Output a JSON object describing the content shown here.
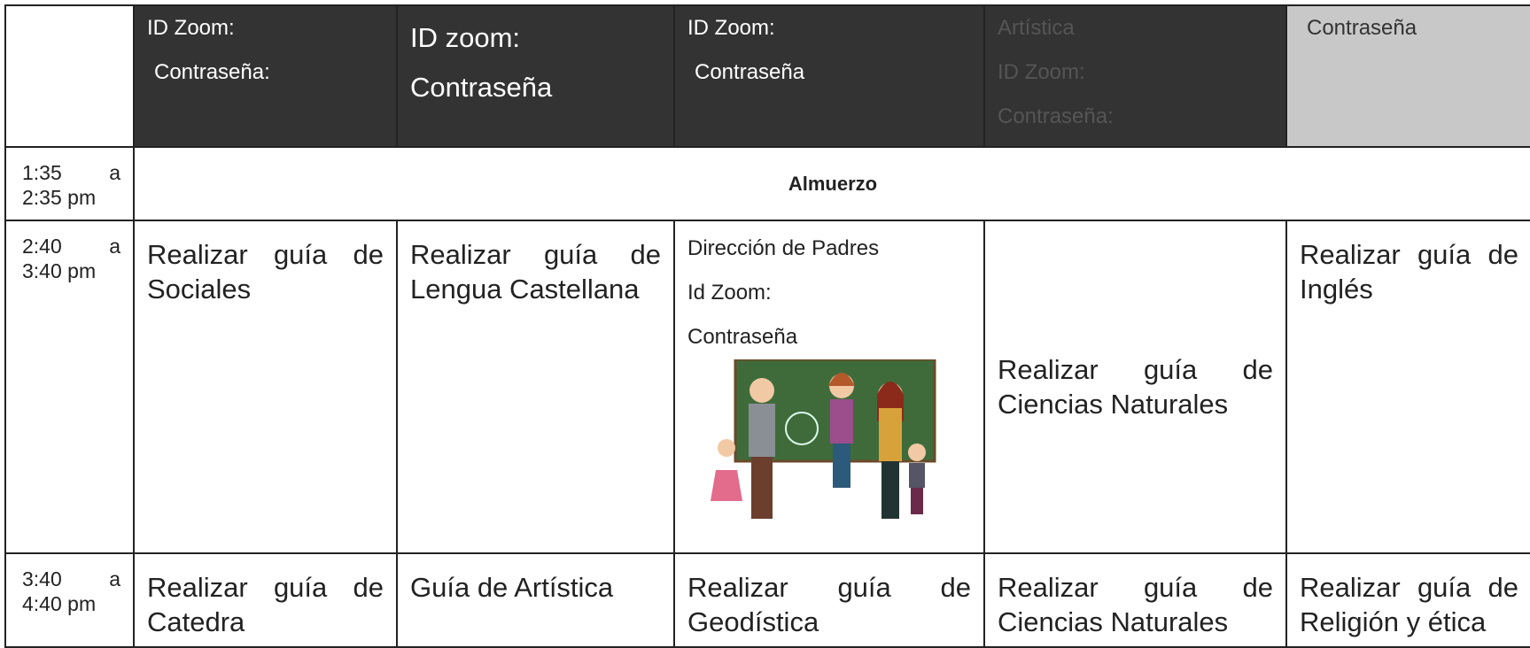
{
  "header": {
    "cells": [
      [
        "ID Zoom:",
        "Contraseña:"
      ],
      [
        "ID zoom:",
        "Contraseña"
      ],
      [
        "ID Zoom:",
        "Contraseña"
      ],
      [
        "Artística",
        "ID Zoom:",
        "Contraseña:"
      ],
      [
        "Contraseña"
      ]
    ]
  },
  "rows": [
    {
      "time": "1:35 a 2:35 pm",
      "merged": "Almuerzo"
    },
    {
      "time": "2:40 a 3:40 pm",
      "cells": [
        "Realizar guía de Sociales",
        "Realizar guía de Lengua Castellana",
        [
          "Dirección de Padres",
          "Id Zoom:",
          "Contraseña"
        ],
        "Realizar guía de Ciencias Naturales",
        "Realizar guía de Inglés"
      ]
    },
    {
      "time": "3:40 a 4:40 pm",
      "cells": [
        "Realizar guía de Catedra",
        "Guía de Artística",
        "Realizar guía de Geodística",
        "Realizar guía de Ciencias Naturales",
        "Realizar guía de Religión y ética"
      ]
    }
  ]
}
